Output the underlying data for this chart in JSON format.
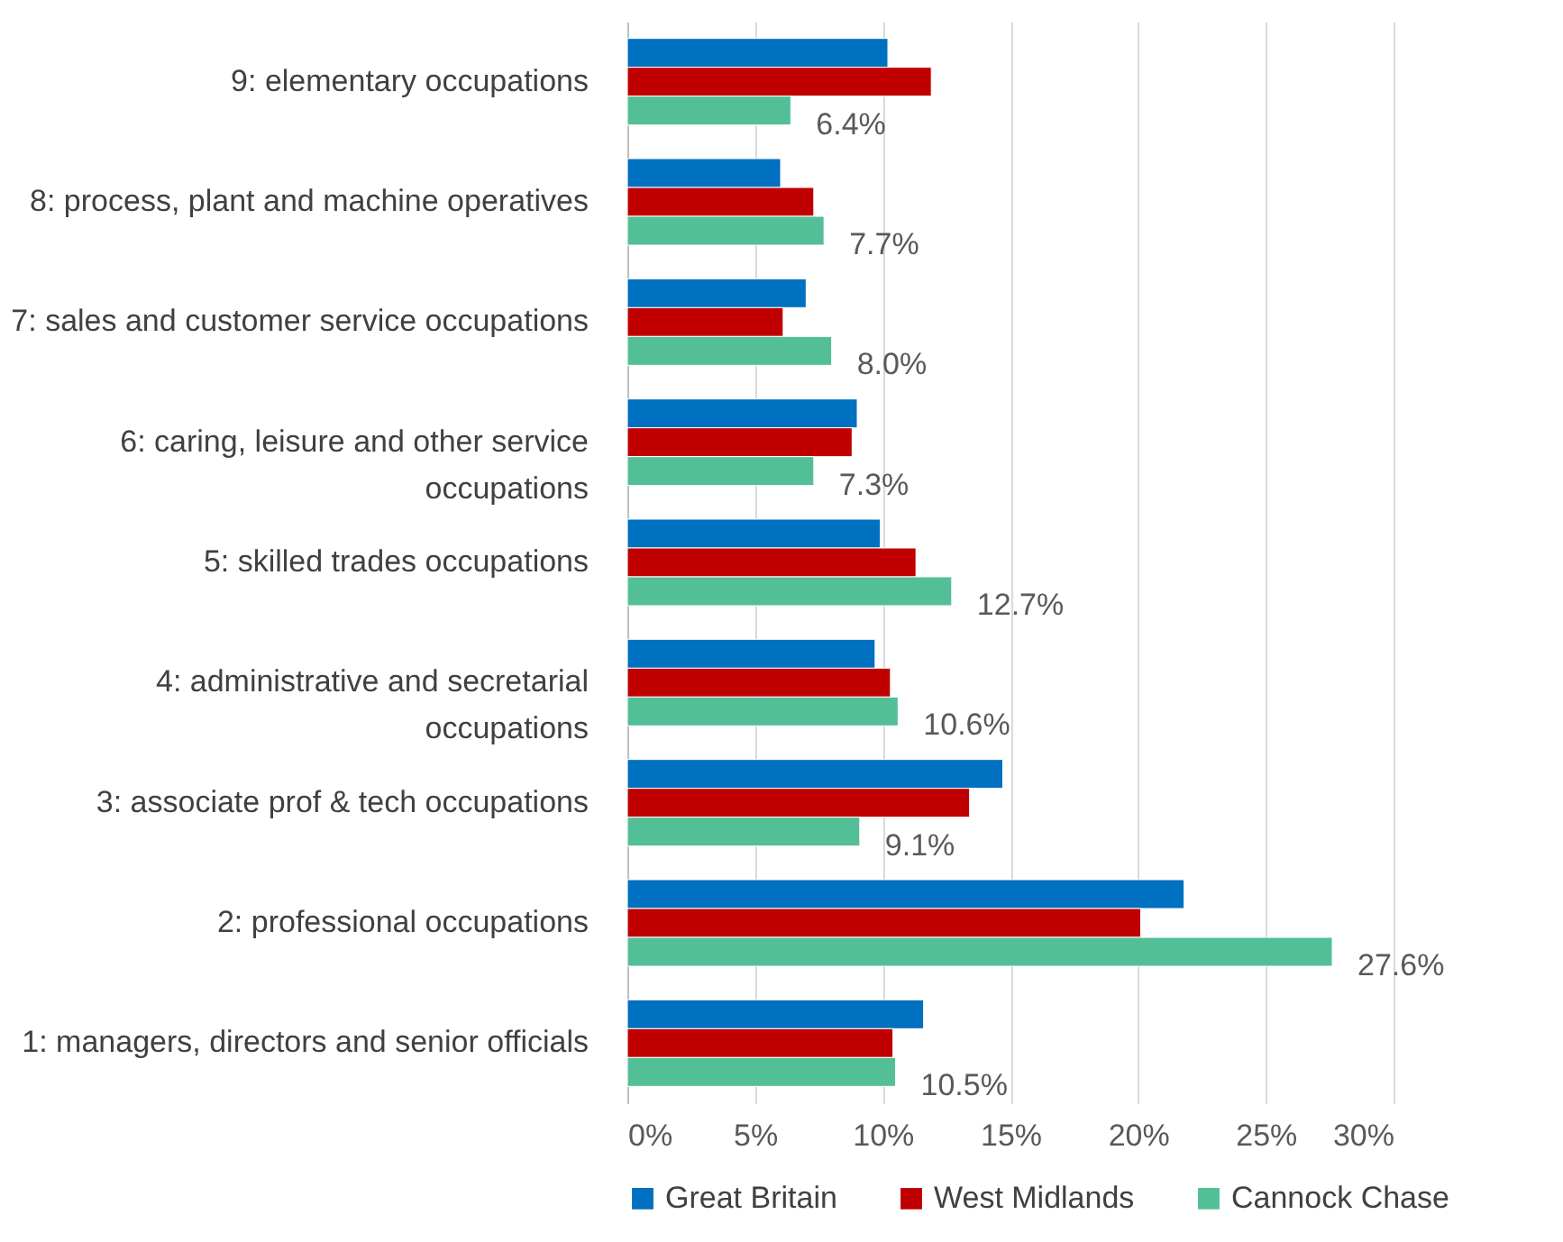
{
  "chart_data": {
    "type": "bar",
    "orientation": "horizontal",
    "categories": [
      "9: elementary occupations",
      "8: process, plant and machine operatives",
      "7: sales and customer service occupations",
      "6: caring, leisure and other service occupations",
      "5: skilled trades occupations",
      "4: administrative and secretarial occupations",
      "3: associate prof & tech occupations",
      "2: professional occupations",
      "1: managers, directors and senior officials"
    ],
    "series": [
      {
        "name": "Great Britain",
        "color": "#0070c0",
        "values": [
          10.2,
          6.0,
          7.0,
          9.0,
          9.9,
          9.7,
          14.7,
          21.8,
          11.6
        ]
      },
      {
        "name": "West Midlands",
        "color": "#c00000",
        "values": [
          11.9,
          7.3,
          6.1,
          8.8,
          11.3,
          10.3,
          13.4,
          20.1,
          10.4
        ]
      },
      {
        "name": "Cannock Chase",
        "color": "#53bf96",
        "values": [
          6.4,
          7.7,
          8.0,
          7.3,
          12.7,
          10.6,
          9.1,
          27.6,
          10.5
        ],
        "value_labels": [
          "6.4%",
          "7.7%",
          "8.0%",
          "7.3%",
          "12.7%",
          "10.6%",
          "9.1%",
          "27.6%",
          "10.5%"
        ]
      }
    ],
    "xlim": [
      0,
      30
    ],
    "xticks": [
      {
        "value": 0,
        "label": "0%"
      },
      {
        "value": 5,
        "label": "5%"
      },
      {
        "value": 10,
        "label": "10%"
      },
      {
        "value": 15,
        "label": "15%"
      },
      {
        "value": 20,
        "label": "20%"
      },
      {
        "value": 25,
        "label": "25%"
      },
      {
        "value": 30,
        "label": "30%"
      }
    ],
    "grid": "x",
    "legend": "bottom"
  }
}
